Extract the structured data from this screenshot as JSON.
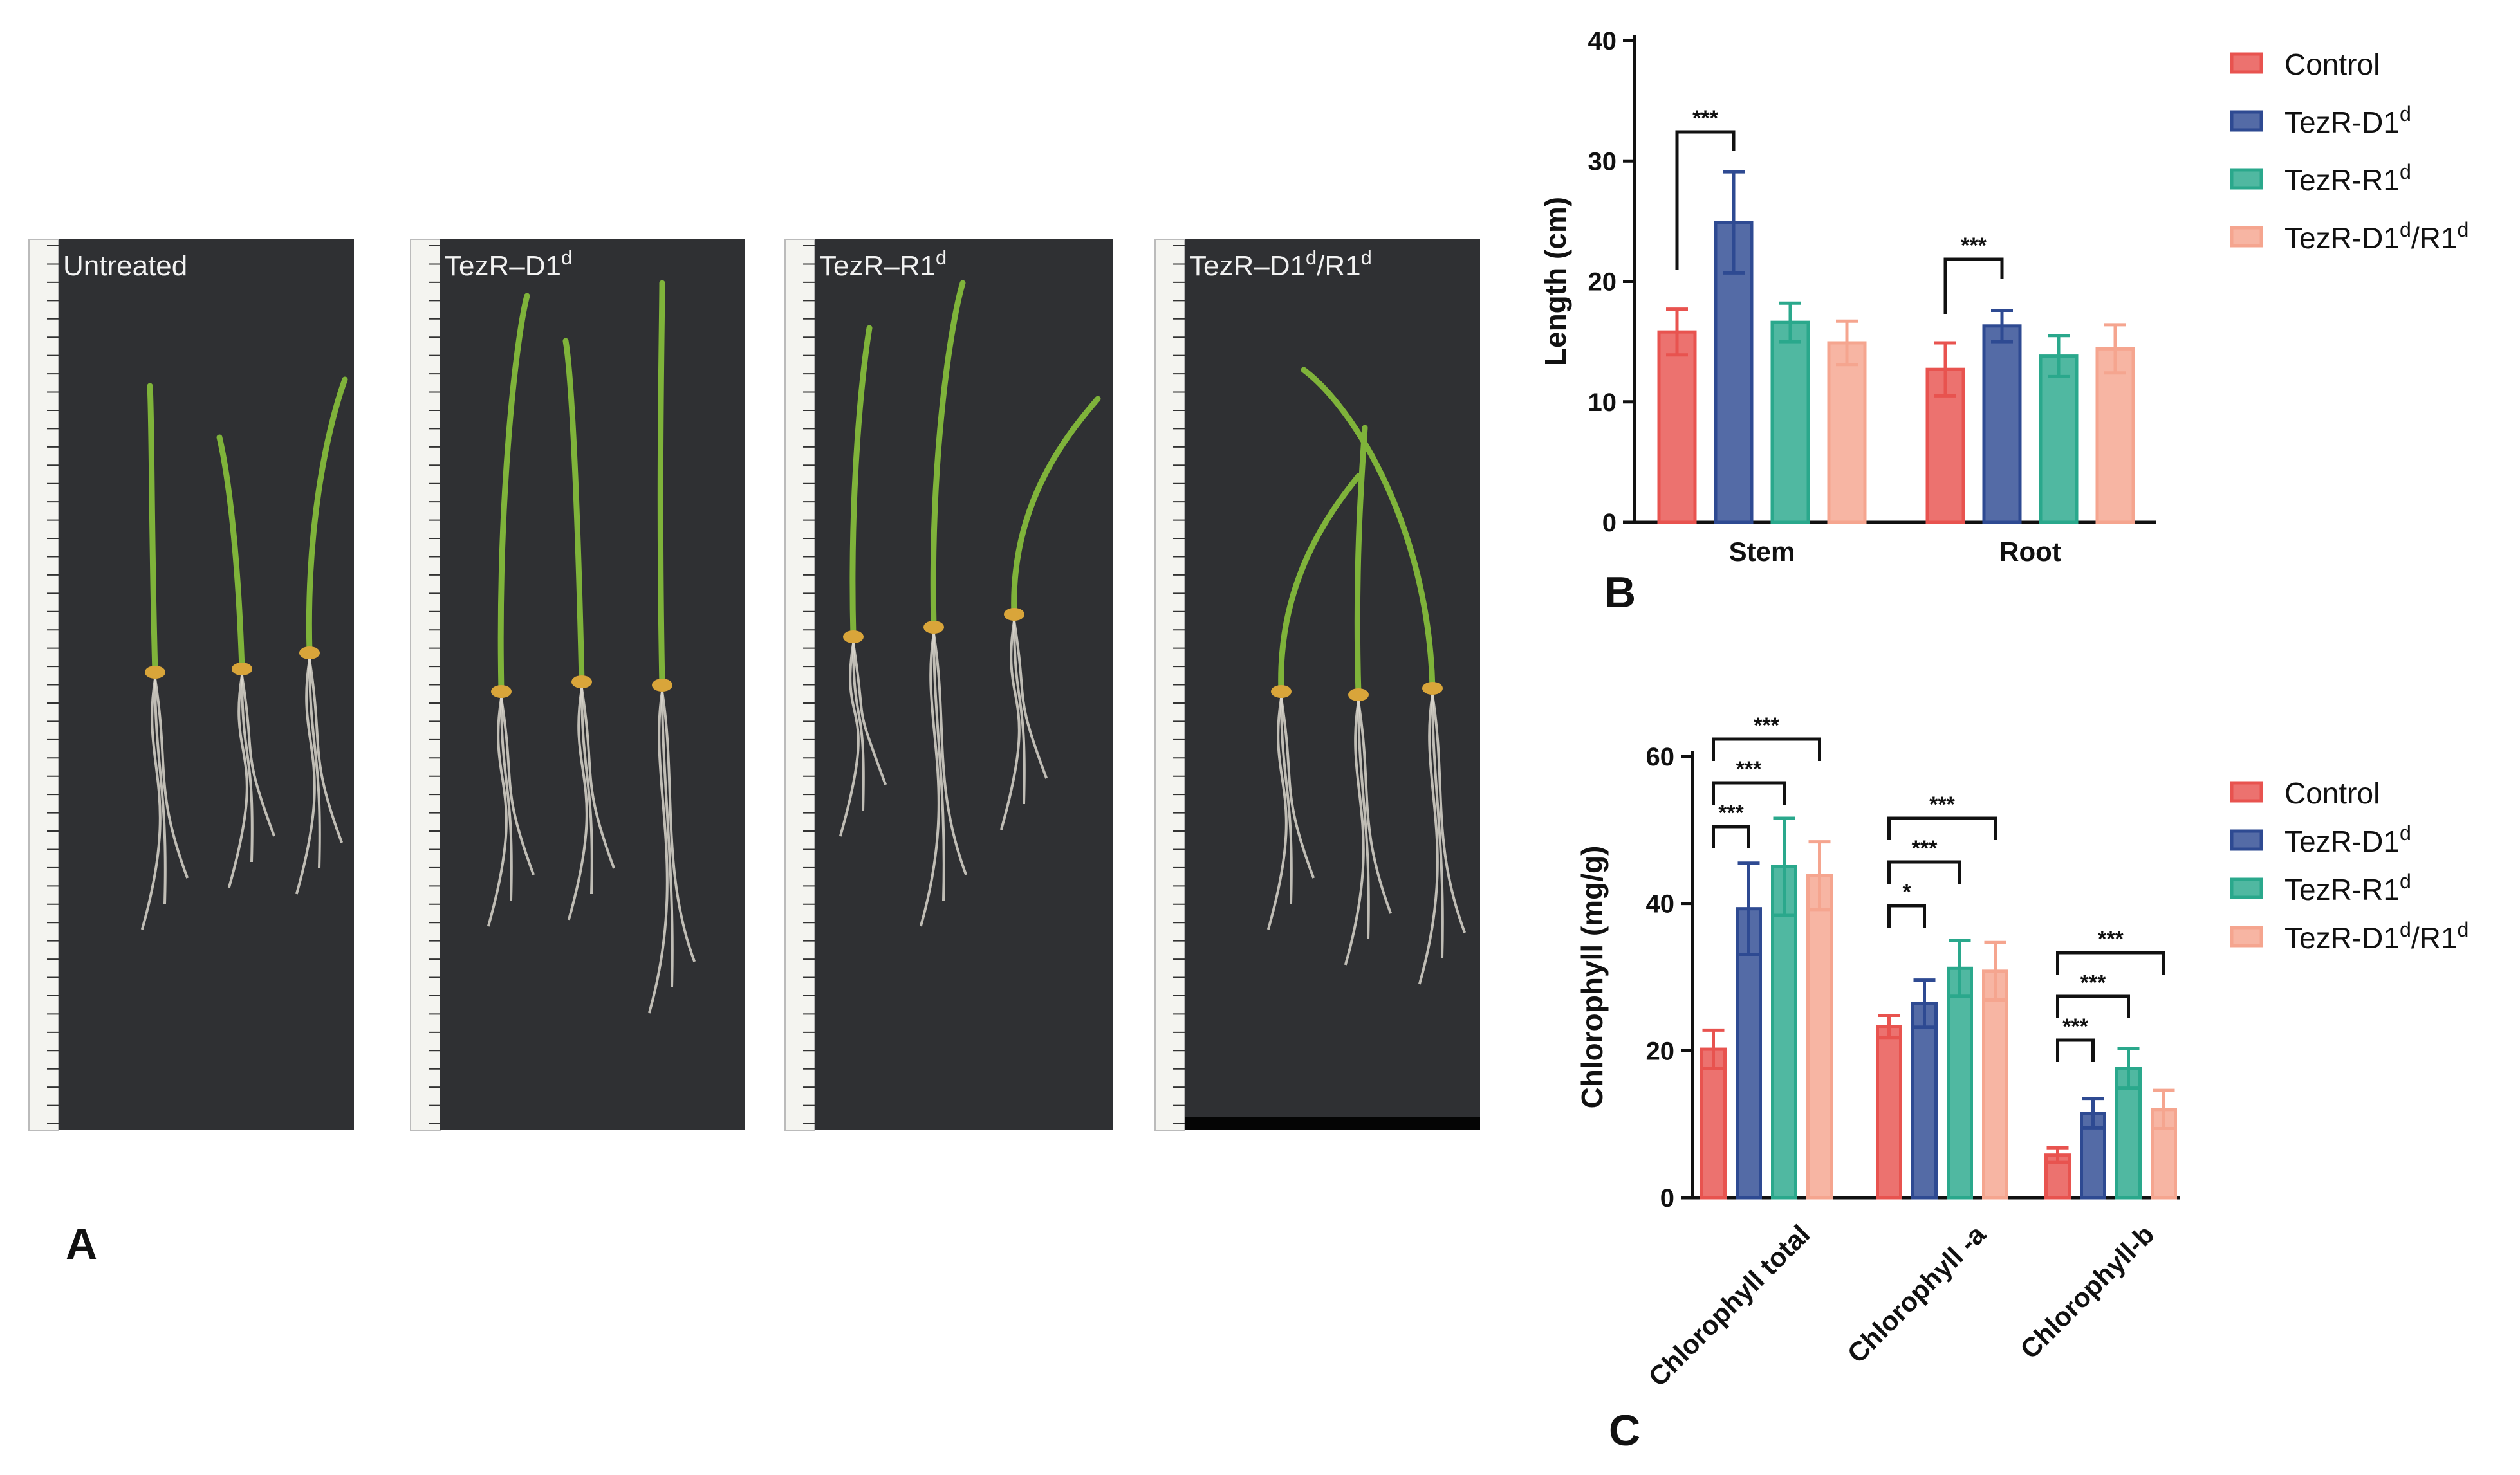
{
  "panel_a": {
    "letter": "A",
    "photos": [
      {
        "label": "Untreated"
      },
      {
        "label": "TezR–D1",
        "sup": "d"
      },
      {
        "label": "TezR–R1",
        "sup": "d"
      },
      {
        "label": "TezR–D1",
        "sup": "d",
        "label2": "/R1",
        "sup2": "d"
      }
    ]
  },
  "legend": [
    {
      "name": "Control",
      "color": "#e8534f"
    },
    {
      "name": "TezR-D1",
      "sup": "d",
      "color": "#2e4a92"
    },
    {
      "name": "TezR-R1",
      "sup": "d",
      "color": "#2aa88c"
    },
    {
      "name": "TezR-D1",
      "sup": "d",
      "name2": "/R1",
      "sup2": "d",
      "color": "#f5a58f"
    }
  ],
  "chart_data": [
    {
      "panel": "B",
      "type": "bar",
      "title": "",
      "xlabel": "",
      "ylabel": "Length (cm)",
      "ylim": [
        0,
        40
      ],
      "yticks": [
        0,
        10,
        20,
        30,
        40
      ],
      "categories": [
        "Stem",
        "Root"
      ],
      "series": [
        {
          "name": "Control",
          "values": [
            15.8,
            12.7
          ],
          "errors": [
            1.9,
            2.2
          ]
        },
        {
          "name": "TezR-D1d",
          "values": [
            24.9,
            16.3
          ],
          "errors": [
            4.2,
            1.3
          ]
        },
        {
          "name": "TezR-R1d",
          "values": [
            16.6,
            13.8
          ],
          "errors": [
            1.6,
            1.7
          ]
        },
        {
          "name": "TezR-D1d/R1d",
          "values": [
            14.9,
            14.4
          ],
          "errors": [
            1.8,
            2.0
          ]
        }
      ],
      "significance": [
        {
          "category": 0,
          "from": 0,
          "to": 1,
          "label": "***"
        },
        {
          "category": 1,
          "from": 0,
          "to": 1,
          "label": "***"
        }
      ],
      "grid": false,
      "legend_position": "right"
    },
    {
      "panel": "C",
      "type": "bar",
      "title": "",
      "xlabel": "",
      "ylabel": "Chlorophyll (mg/g)",
      "ylim": [
        0,
        60
      ],
      "yticks": [
        0,
        20,
        40,
        60
      ],
      "categories": [
        "Chlorophyll total",
        "Chlorophyll -a",
        "Chlorophyll-b"
      ],
      "series": [
        {
          "name": "Control",
          "values": [
            20.2,
            23.3,
            5.8
          ],
          "errors": [
            2.6,
            1.5,
            1.0
          ]
        },
        {
          "name": "TezR-D1d",
          "values": [
            39.3,
            26.4,
            11.5
          ],
          "errors": [
            6.2,
            3.2,
            2.0
          ]
        },
        {
          "name": "TezR-R1d",
          "values": [
            45.0,
            31.2,
            17.6
          ],
          "errors": [
            6.6,
            3.8,
            2.7
          ]
        },
        {
          "name": "TezR-D1d/R1d",
          "values": [
            43.8,
            30.8,
            12.0
          ],
          "errors": [
            4.6,
            3.9,
            2.6
          ]
        }
      ],
      "significance": [
        {
          "category": 0,
          "from": 0,
          "to": 1,
          "label": "***"
        },
        {
          "category": 0,
          "from": 0,
          "to": 2,
          "label": "***"
        },
        {
          "category": 0,
          "from": 0,
          "to": 3,
          "label": "***"
        },
        {
          "category": 1,
          "from": 0,
          "to": 1,
          "label": "*"
        },
        {
          "category": 1,
          "from": 0,
          "to": 2,
          "label": "***"
        },
        {
          "category": 1,
          "from": 0,
          "to": 3,
          "label": "***"
        },
        {
          "category": 2,
          "from": 0,
          "to": 1,
          "label": "***"
        },
        {
          "category": 2,
          "from": 0,
          "to": 2,
          "label": "***"
        },
        {
          "category": 2,
          "from": 0,
          "to": 3,
          "label": "***"
        }
      ],
      "grid": false,
      "legend_position": "right"
    }
  ]
}
